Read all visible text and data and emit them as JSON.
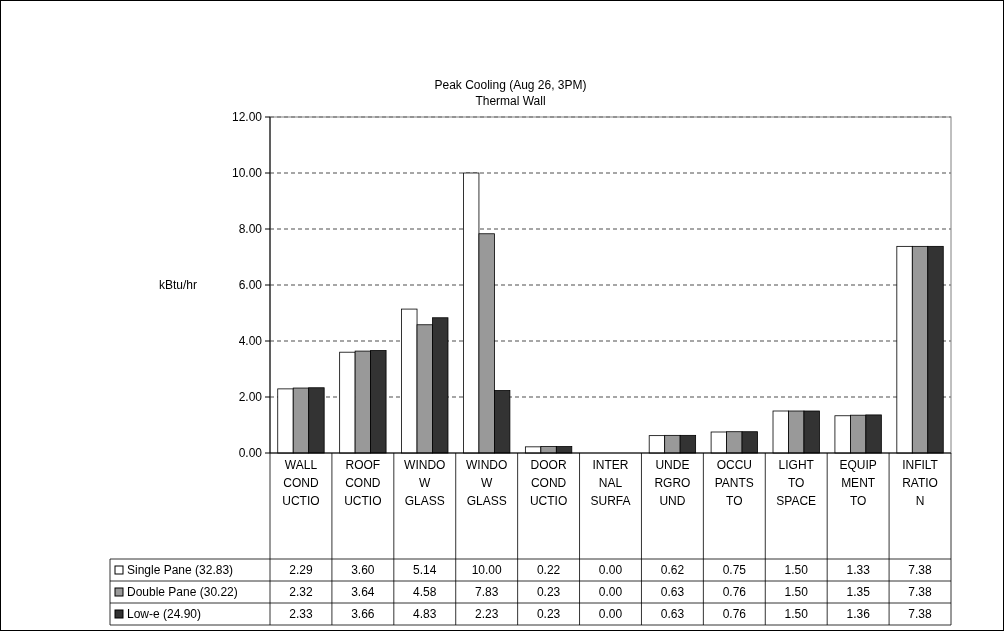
{
  "chart_data": {
    "type": "bar",
    "title": "Peak Cooling (Aug 26, 3PM)",
    "subtitle": "Thermal Wall",
    "ylabel": "kBtu/hr",
    "categories": [
      "WALL COND UCTIO",
      "ROOF COND UCTIO",
      "WINDO W GLASS",
      "WINDO W GLASS",
      "DOOR COND UCTIO",
      "INTER NAL SURFA",
      "UNDE RGRO UND",
      "OCCU PANTS TO",
      "LIGHT TO SPACE",
      "EQUIP MENT TO",
      "INFILT RATIO N"
    ],
    "series": [
      {
        "name": "Single Pane (32.83)",
        "color": "#ffffff",
        "values": [
          2.29,
          3.6,
          5.14,
          10.0,
          0.22,
          0.0,
          0.62,
          0.75,
          1.5,
          1.33,
          7.38
        ],
        "value_labels": [
          "2.29",
          "3.60",
          "5.14",
          "10.00",
          "0.22",
          "0.00",
          "0.62",
          "0.75",
          "1.50",
          "1.33",
          "7.38"
        ]
      },
      {
        "name": "Double Pane (30.22)",
        "color": "#999999",
        "values": [
          2.32,
          3.64,
          4.58,
          7.83,
          0.23,
          0.0,
          0.63,
          0.76,
          1.5,
          1.35,
          7.38
        ],
        "value_labels": [
          "2.32",
          "3.64",
          "4.58",
          "7.83",
          "0.23",
          "0.00",
          "0.63",
          "0.76",
          "1.50",
          "1.35",
          "7.38"
        ]
      },
      {
        "name": "Low-e (24.90)",
        "color": "#333333",
        "values": [
          2.33,
          3.66,
          4.83,
          2.23,
          0.23,
          0.0,
          0.63,
          0.76,
          1.5,
          1.36,
          7.38
        ],
        "value_labels": [
          "2.33",
          "3.66",
          "4.83",
          "2.23",
          "0.23",
          "0.00",
          "0.63",
          "0.76",
          "1.50",
          "1.36",
          "7.38"
        ]
      }
    ],
    "ylim": [
      0,
      12
    ],
    "yticks": [
      {
        "value": 0,
        "label": "0.00"
      },
      {
        "value": 2,
        "label": "2.00"
      },
      {
        "value": 4,
        "label": "4.00"
      },
      {
        "value": 6,
        "label": "6.00"
      },
      {
        "value": 8,
        "label": "8.00"
      },
      {
        "value": 10,
        "label": "10.00"
      },
      {
        "value": 12,
        "label": "12.00"
      }
    ],
    "grid": "y",
    "legend": "bottom"
  }
}
